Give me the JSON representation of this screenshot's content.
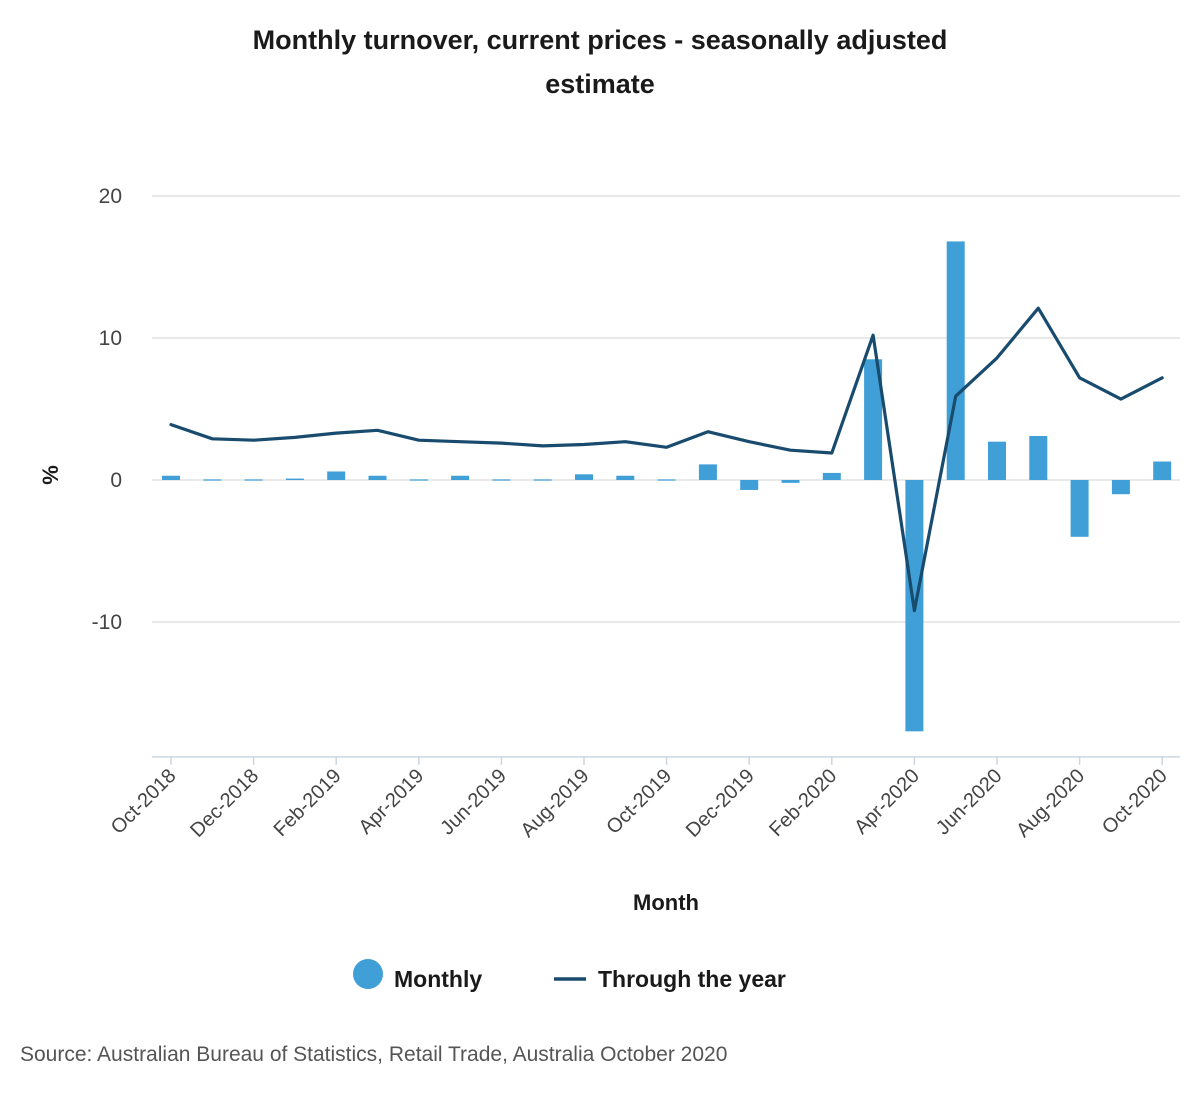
{
  "chart_data": {
    "type": "bar+line",
    "title_lines": [
      "Monthly turnover, current prices - seasonally adjusted",
      "estimate"
    ],
    "xlabel": "Month",
    "ylabel": "%",
    "ylim": [
      -19.5,
      20
    ],
    "yticks": [
      20,
      10,
      0,
      -10
    ],
    "categories": [
      "Oct-2018",
      "Nov-2018",
      "Dec-2018",
      "Jan-2019",
      "Feb-2019",
      "Mar-2019",
      "Apr-2019",
      "May-2019",
      "Jun-2019",
      "Jul-2019",
      "Aug-2019",
      "Sep-2019",
      "Oct-2019",
      "Nov-2019",
      "Dec-2019",
      "Jan-2020",
      "Feb-2020",
      "Mar-2020",
      "Apr-2020",
      "May-2020",
      "Jun-2020",
      "Jul-2020",
      "Aug-2020",
      "Sep-2020",
      "Oct-2020"
    ],
    "xtick_labels": [
      "Oct-2018",
      "Dec-2018",
      "Feb-2019",
      "Apr-2019",
      "Jun-2019",
      "Aug-2019",
      "Oct-2019",
      "Dec-2019",
      "Feb-2020",
      "Apr-2020",
      "Jun-2020",
      "Aug-2020",
      "Oct-2020"
    ],
    "series": [
      {
        "name": "Monthly",
        "type": "bar",
        "color": "#3f9fd6",
        "values": [
          0.3,
          0.0,
          0.0,
          0.1,
          0.6,
          0.3,
          0.0,
          0.3,
          0.0,
          0.0,
          0.4,
          0.3,
          0.0,
          1.1,
          -0.7,
          -0.2,
          0.5,
          8.5,
          -17.7,
          16.8,
          2.7,
          3.1,
          -4.0,
          -1.0,
          1.3
        ]
      },
      {
        "name": "Through the year",
        "type": "line",
        "color": "#184b6e",
        "values": [
          3.9,
          2.9,
          2.8,
          3.0,
          3.3,
          3.5,
          2.8,
          2.7,
          2.6,
          2.4,
          2.5,
          2.7,
          2.3,
          3.4,
          2.7,
          2.1,
          1.9,
          10.2,
          -9.2,
          5.9,
          8.6,
          12.1,
          7.2,
          5.7,
          7.2
        ]
      }
    ],
    "legend": [
      "Monthly",
      "Through the year"
    ],
    "legend_position": "bottom-center"
  },
  "source": "Source: Australian Bureau of Statistics, Retail Trade, Australia October 2020"
}
